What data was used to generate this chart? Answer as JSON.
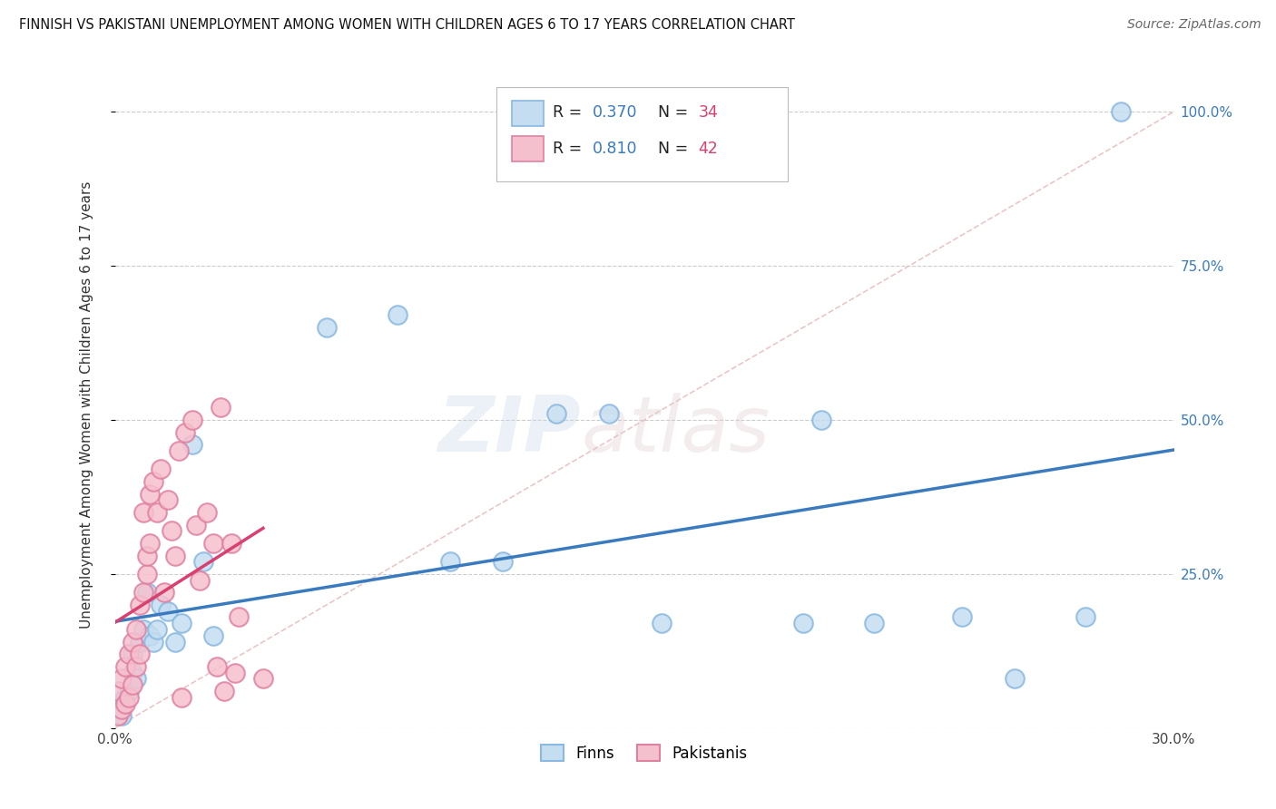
{
  "title": "FINNISH VS PAKISTANI UNEMPLOYMENT AMONG WOMEN WITH CHILDREN AGES 6 TO 17 YEARS CORRELATION CHART",
  "source": "Source: ZipAtlas.com",
  "ylabel": "Unemployment Among Women with Children Ages 6 to 17 years",
  "xlim": [
    0.0,
    0.3
  ],
  "ylim": [
    0.0,
    1.05
  ],
  "color_finns_face": "#c5ddf0",
  "color_finns_edge": "#89b8e0",
  "color_pakistanis_face": "#f5c0ce",
  "color_pakistanis_edge": "#e080a0",
  "color_finns_line": "#3a7abf",
  "color_pakistanis_line": "#d94070",
  "color_diag": "#e8c0c0",
  "r_color": "#3a7abf",
  "n_color": "#d94070",
  "right_axis_color": "#3a7abf",
  "finns_x": [
    0.001,
    0.002,
    0.003,
    0.004,
    0.005,
    0.005,
    0.006,
    0.007,
    0.008,
    0.009,
    0.01,
    0.011,
    0.012,
    0.013,
    0.015,
    0.017,
    0.019,
    0.022,
    0.025,
    0.028,
    0.06,
    0.08,
    0.095,
    0.11,
    0.125,
    0.14,
    0.155,
    0.195,
    0.2,
    0.215,
    0.24,
    0.255,
    0.275,
    0.285
  ],
  "finns_y": [
    0.04,
    0.02,
    0.05,
    0.06,
    0.09,
    0.12,
    0.08,
    0.14,
    0.16,
    0.22,
    0.15,
    0.14,
    0.16,
    0.2,
    0.19,
    0.14,
    0.17,
    0.46,
    0.27,
    0.15,
    0.65,
    0.67,
    0.27,
    0.27,
    0.51,
    0.51,
    0.17,
    0.17,
    0.5,
    0.17,
    0.18,
    0.08,
    0.18,
    1.0
  ],
  "pakistanis_x": [
    0.001,
    0.001,
    0.002,
    0.002,
    0.003,
    0.003,
    0.004,
    0.004,
    0.005,
    0.005,
    0.006,
    0.006,
    0.007,
    0.007,
    0.008,
    0.008,
    0.009,
    0.009,
    0.01,
    0.01,
    0.011,
    0.012,
    0.013,
    0.014,
    0.015,
    0.016,
    0.017,
    0.018,
    0.019,
    0.02,
    0.022,
    0.023,
    0.024,
    0.026,
    0.028,
    0.029,
    0.03,
    0.031,
    0.033,
    0.034,
    0.035,
    0.042
  ],
  "pakistanis_y": [
    0.02,
    0.06,
    0.03,
    0.08,
    0.04,
    0.1,
    0.05,
    0.12,
    0.07,
    0.14,
    0.1,
    0.16,
    0.12,
    0.2,
    0.35,
    0.22,
    0.25,
    0.28,
    0.3,
    0.38,
    0.4,
    0.35,
    0.42,
    0.22,
    0.37,
    0.32,
    0.28,
    0.45,
    0.05,
    0.48,
    0.5,
    0.33,
    0.24,
    0.35,
    0.3,
    0.1,
    0.52,
    0.06,
    0.3,
    0.09,
    0.18,
    0.08
  ]
}
